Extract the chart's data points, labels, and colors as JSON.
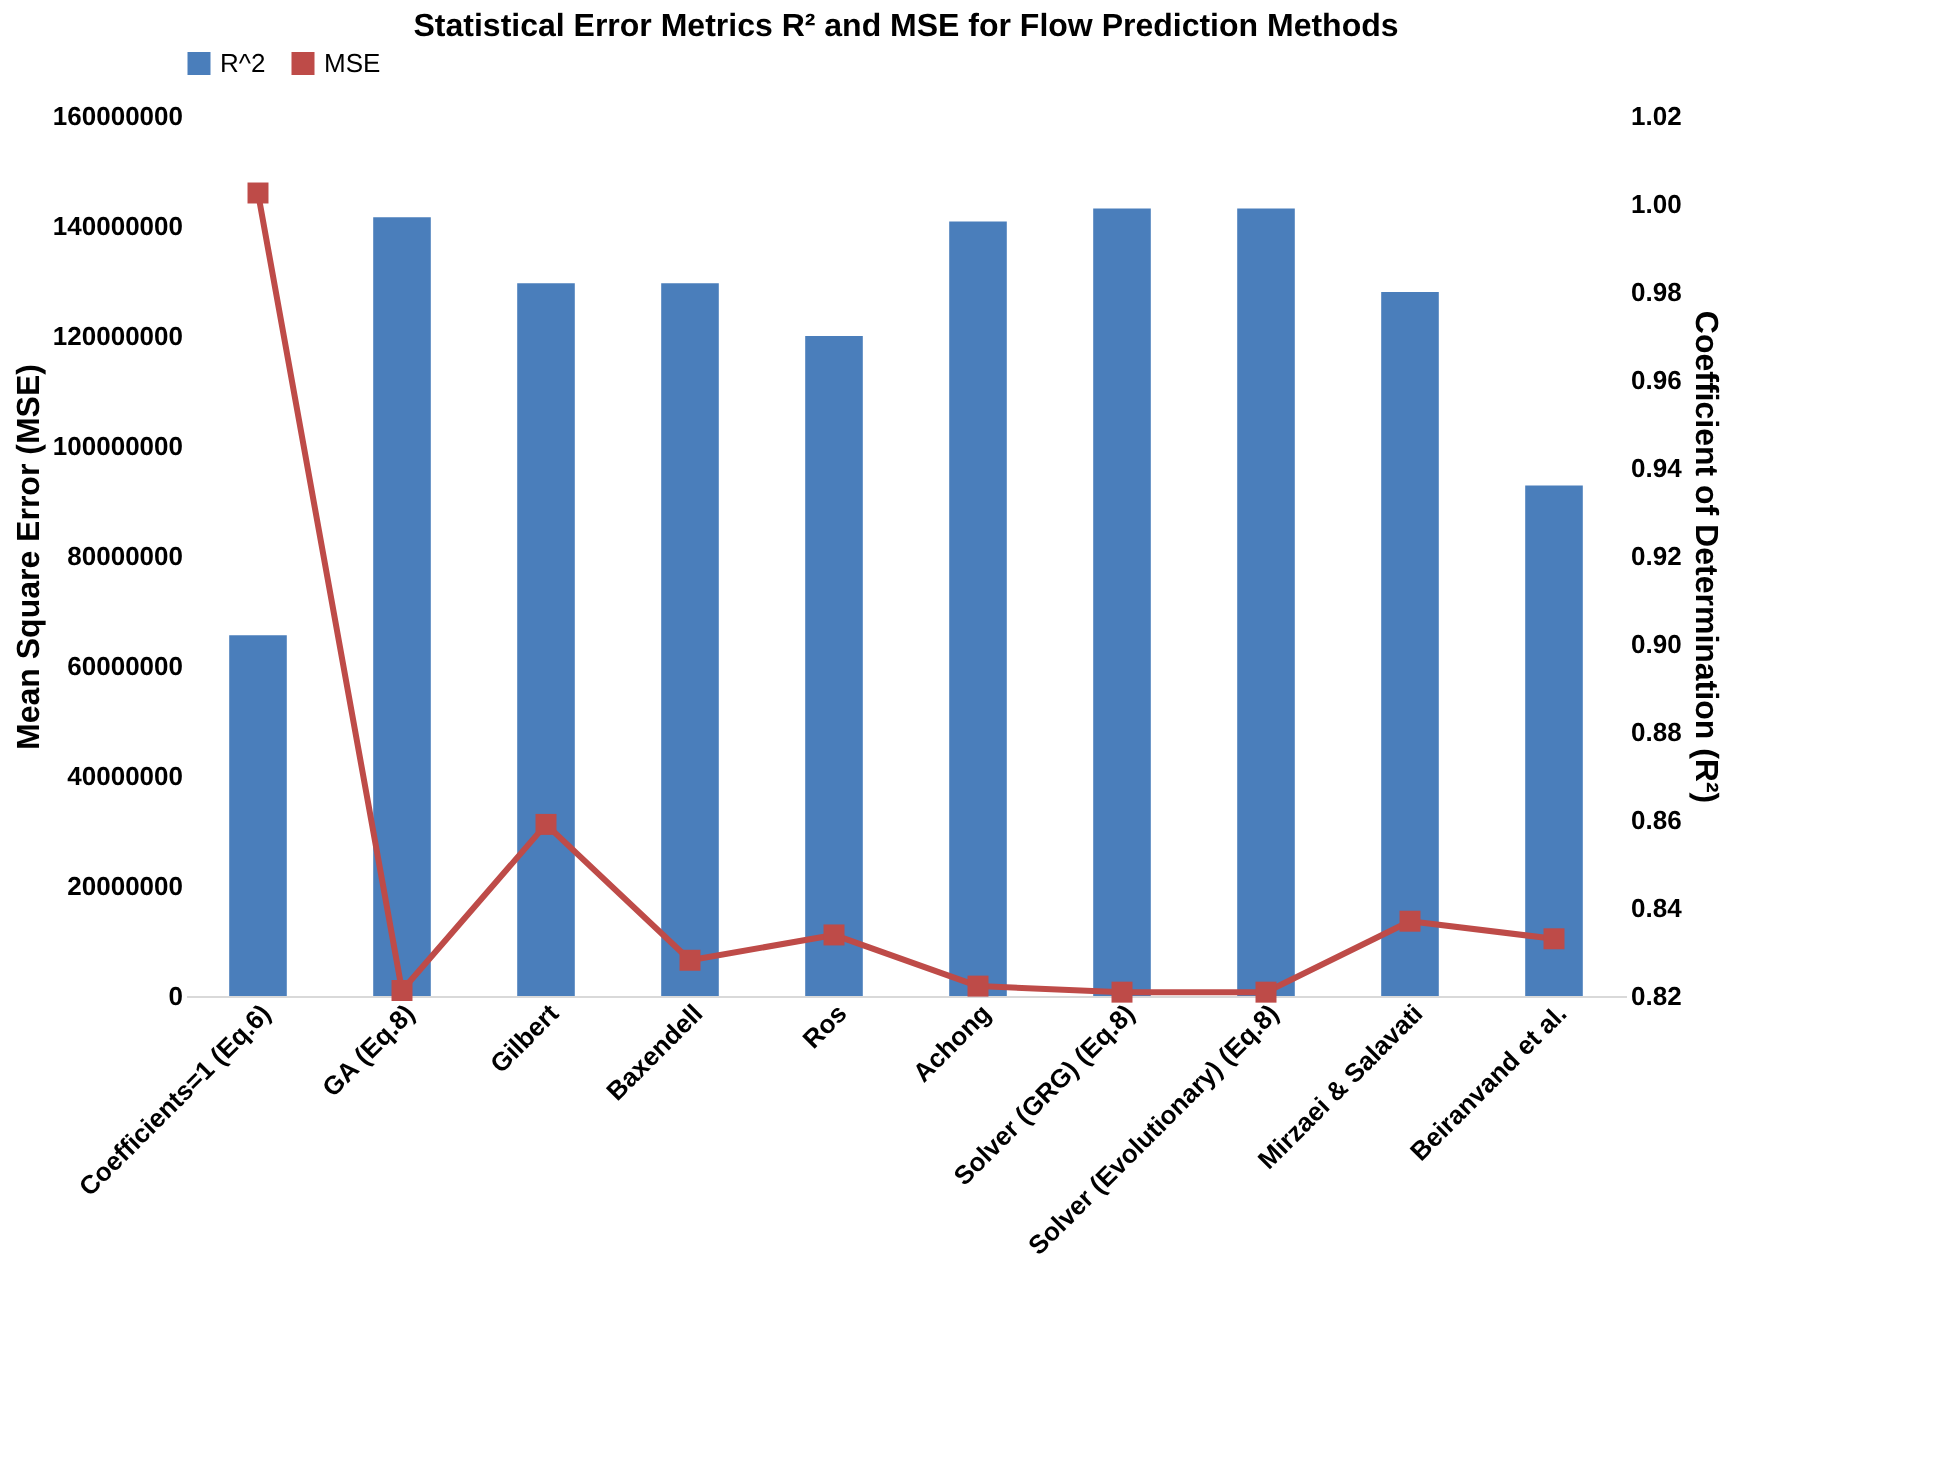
{
  "chart_data": {
    "type": "bar",
    "title": "Statistical Error Metrics R² and MSE for Flow Prediction Methods",
    "ylabel": "Mean Square Error (MSE)",
    "y2label": "Coefficient of Determination (R²)",
    "categories": [
      "Coefficients=1 (Eq.6)",
      "GA (Eq.8)",
      "Gilbert",
      "Baxendell",
      "Ros",
      "Achong",
      "Solver (GRG) (Eq.8)",
      "Solver (Evolutionary) (Eq.8)",
      "Mirzaei & Salavati",
      "Beiranvand et al."
    ],
    "series": [
      {
        "name": "R^2",
        "axis": "y2",
        "color": "#4a7ebb",
        "values": [
          0.902,
          0.997,
          0.982,
          0.982,
          0.97,
          0.996,
          0.999,
          0.999,
          0.98,
          0.936
        ]
      },
      {
        "name": "MSE",
        "type": "line",
        "axis": "y",
        "color": "#be4b48",
        "marker": "square",
        "values": [
          146000000,
          1000000,
          31200000,
          6500000,
          11100000,
          1800000,
          700000,
          700000,
          13600000,
          10400000
        ]
      }
    ],
    "ylim": [
      0,
      160000000
    ],
    "yticks": [
      0,
      20000000,
      40000000,
      60000000,
      80000000,
      100000000,
      120000000,
      140000000,
      160000000
    ],
    "y2lim": [
      0.82,
      1.02
    ],
    "y2ticks": [
      0.82,
      0.84,
      0.86,
      0.88,
      {
        "value": 0.9,
        "label": "0.90"
      },
      0.92,
      0.94,
      0.96,
      0.98,
      {
        "value": 1,
        "label": "1.00"
      },
      1.02
    ],
    "legend": "top",
    "grid": false
  }
}
